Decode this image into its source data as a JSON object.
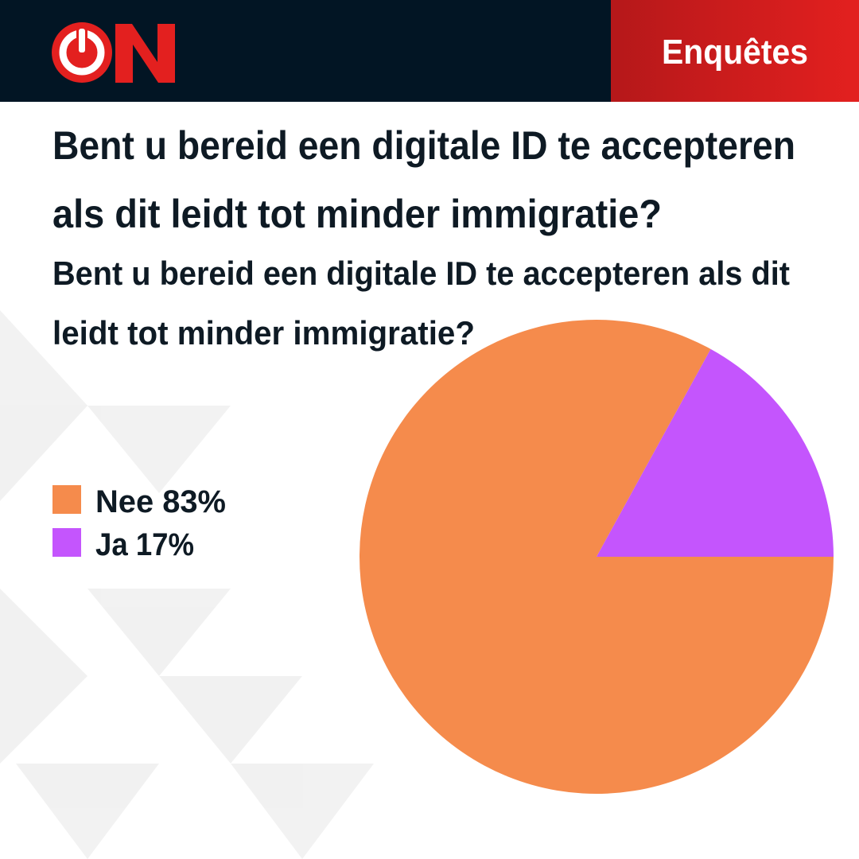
{
  "header": {
    "tag": "Enquêtes"
  },
  "chart_data": {
    "type": "pie",
    "title": [
      "Bent u bereid een digitale ID te accepteren",
      "als dit leidt tot minder immigratie?"
    ],
    "subtitle": [
      "Bent u bereid een digitale ID te accepteren als dit",
      "leidt tot minder immigratie?"
    ],
    "categories": [
      "Nee",
      "Ja"
    ],
    "values": [
      83,
      17
    ],
    "value_labels": [
      "83%",
      "17%"
    ],
    "colors": [
      "#f58b4c",
      "#c455fd"
    ],
    "legend": "left"
  }
}
